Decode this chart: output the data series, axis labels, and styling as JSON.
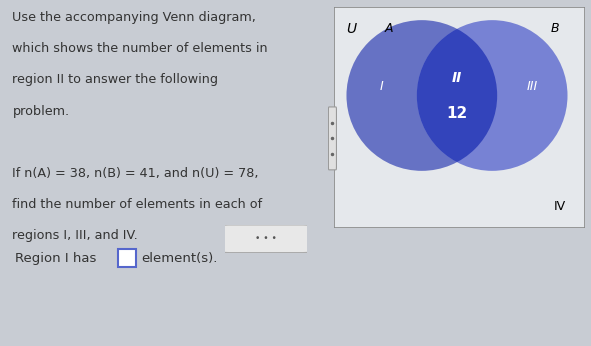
{
  "bg_top": "#c8ccd3",
  "bg_bottom": "#d4d8de",
  "text_color": "#333333",
  "left_panel_lines": [
    "Use the accompanying Venn diagram,",
    "which shows the number of elements in",
    "region II to answer the following",
    "problem.",
    "",
    "If n(A) = 38, n(B) = 41, and n(U) = 78,",
    "find the number of elements in each of",
    "regions I, III, and IV."
  ],
  "bottom_prefix": "Region I has",
  "bottom_suffix": "element(s).",
  "venn_bg": "#e5e8ec",
  "venn_border": "#888888",
  "circle_a_color": "#6672c4",
  "circle_b_color": "#7782d4",
  "overlap_color": "#3344bb",
  "label_U": "U",
  "label_A": "A",
  "label_B": "B",
  "label_I": "I",
  "label_II": "II",
  "label_III": "III",
  "label_IV": "IV",
  "region_II_value": "12",
  "answer_box_color": "#5566cc",
  "separator_color": "#bbbbbb",
  "dots_bg": "#e0e0e0",
  "dots_border": "#aaaaaa",
  "sidebar_dots": "#888888"
}
